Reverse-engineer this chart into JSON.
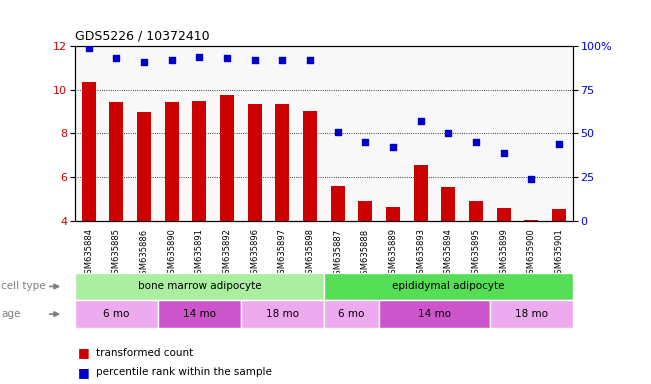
{
  "title": "GDS5226 / 10372410",
  "samples": [
    "GSM635884",
    "GSM635885",
    "GSM635886",
    "GSM635890",
    "GSM635891",
    "GSM635892",
    "GSM635896",
    "GSM635897",
    "GSM635898",
    "GSM635887",
    "GSM635888",
    "GSM635889",
    "GSM635893",
    "GSM635894",
    "GSM635895",
    "GSM635899",
    "GSM635900",
    "GSM635901"
  ],
  "bar_values": [
    10.35,
    9.45,
    9.0,
    9.45,
    9.5,
    9.75,
    9.35,
    9.35,
    9.05,
    5.6,
    4.9,
    4.65,
    6.55,
    5.55,
    4.9,
    4.6,
    4.05,
    4.55
  ],
  "dot_values_pct": [
    99,
    93,
    91,
    92,
    94,
    93,
    92,
    92,
    92,
    51,
    45,
    42,
    57,
    50,
    45,
    39,
    24,
    44
  ],
  "bar_color": "#cc0000",
  "dot_color": "#0000cc",
  "ylim_left": [
    4,
    12
  ],
  "ylim_right": [
    0,
    100
  ],
  "yticks_left": [
    4,
    6,
    8,
    10,
    12
  ],
  "yticks_right": [
    0,
    25,
    50,
    75,
    100
  ],
  "yticklabels_right": [
    "0",
    "25",
    "50",
    "75",
    "100%"
  ],
  "cell_type_groups": [
    {
      "label": "bone marrow adipocyte",
      "start": 0,
      "end": 9,
      "color": "#aaeea0"
    },
    {
      "label": "epididymal adipocyte",
      "start": 9,
      "end": 18,
      "color": "#55dd55"
    }
  ],
  "age_groups": [
    {
      "label": "6 mo",
      "start": 0,
      "end": 3,
      "alt": 0
    },
    {
      "label": "14 mo",
      "start": 3,
      "end": 6,
      "alt": 1
    },
    {
      "label": "18 mo",
      "start": 6,
      "end": 9,
      "alt": 0
    },
    {
      "label": "6 mo",
      "start": 9,
      "end": 11,
      "alt": 0
    },
    {
      "label": "14 mo",
      "start": 11,
      "end": 15,
      "alt": 1
    },
    {
      "label": "18 mo",
      "start": 15,
      "end": 18,
      "alt": 0
    }
  ],
  "age_colors": [
    "#eeaaee",
    "#cc55cc"
  ],
  "legend_bar_label": "transformed count",
  "legend_dot_label": "percentile rank within the sample",
  "cell_type_label": "cell type",
  "age_label": "age",
  "background_color": "#ffffff"
}
